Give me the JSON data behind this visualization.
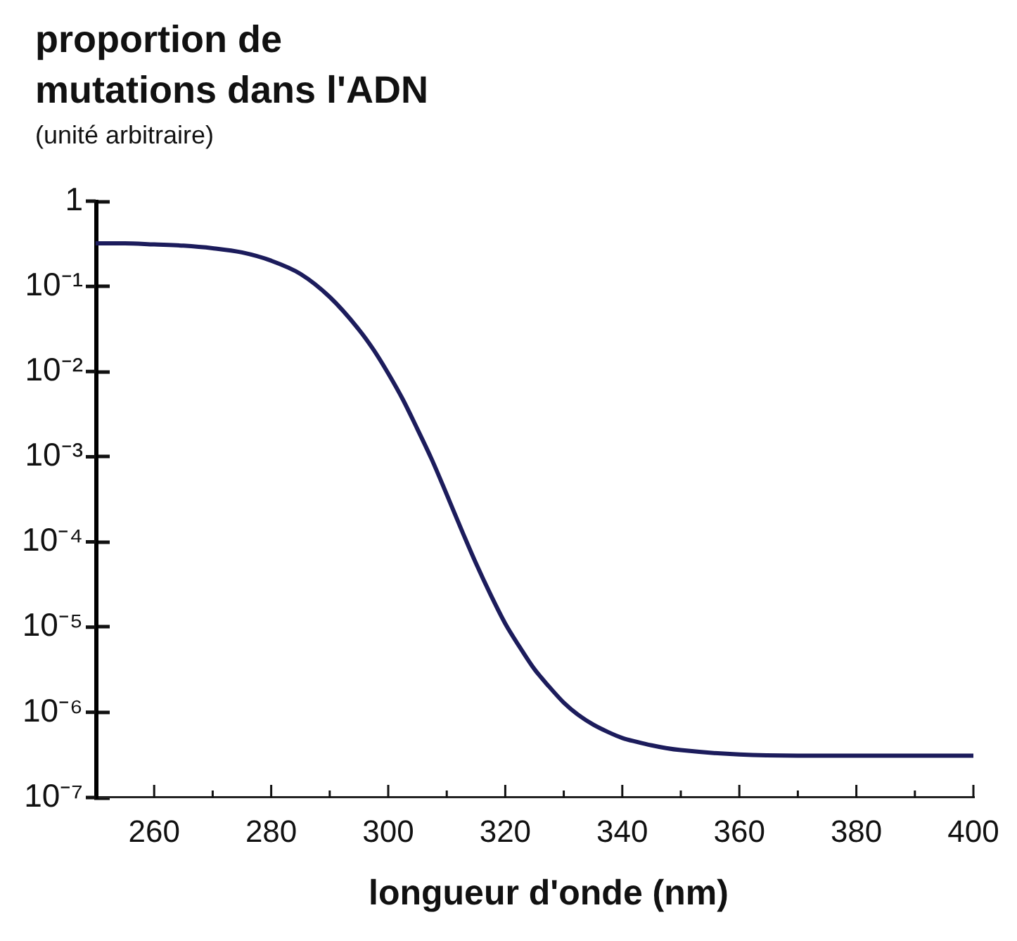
{
  "chart_data": {
    "type": "line",
    "ylabel": "proportion de mutations dans l'ADN\n(unité arbitraire)",
    "xlabel": "longueur d'onde (nm)",
    "x": [
      250,
      255,
      260,
      265,
      270,
      275,
      280,
      285,
      290,
      295,
      297.5,
      300,
      302.5,
      305,
      307.5,
      310,
      312.5,
      315,
      317.5,
      320,
      322.5,
      325,
      327.5,
      330,
      332.5,
      335,
      337.5,
      340,
      342.5,
      345,
      347.5,
      350,
      360,
      370,
      380,
      390,
      400
    ],
    "series": [
      {
        "color": "#1c1c5c",
        "values": [
          0.32,
          0.32,
          0.31,
          0.3,
          0.28,
          0.25,
          0.2,
          0.14,
          0.075,
          0.031,
          0.018,
          0.0095,
          0.0047,
          0.0021,
          0.00091,
          0.00036,
          0.00014,
          5.6e-05,
          2.4e-05,
          1.1e-05,
          5.8e-06,
          3.2e-06,
          2e-06,
          1.3e-06,
          9.3e-07,
          7.2e-07,
          5.9e-07,
          5e-07,
          4.5e-07,
          4.1e-07,
          3.8e-07,
          3.6e-07,
          3.2e-07,
          3.1e-07,
          3.1e-07,
          3.1e-07,
          3.1e-07
        ]
      }
    ],
    "xlim": [
      250,
      400
    ],
    "xticks": [
      260,
      {
        "value": 270,
        "label": null
      },
      280,
      {
        "value": 290,
        "label": null
      },
      300,
      {
        "value": 310,
        "label": null
      },
      320,
      {
        "value": 330,
        "label": null
      },
      340,
      {
        "value": 350,
        "label": null
      },
      360,
      {
        "value": 370,
        "label": null
      },
      380,
      {
        "value": 390,
        "label": null
      },
      400
    ],
    "ylim": [
      1e-07,
      1
    ],
    "yticks": [
      1,
      {
        "value": 0.1,
        "label": "10⁻¹"
      },
      {
        "value": 0.01,
        "label": "10⁻²"
      },
      {
        "value": 0.001,
        "label": "10⁻³"
      },
      {
        "value": 0.0001,
        "label": "10⁻⁴"
      },
      {
        "value": 1e-05,
        "label": "10⁻⁵"
      },
      {
        "value": 1e-06,
        "label": "10⁻⁶"
      },
      {
        "value": 1e-07,
        "label": "10⁻⁷"
      }
    ],
    "log": true,
    "legend": false,
    "marker": "none",
    "line_style": "solid"
  }
}
